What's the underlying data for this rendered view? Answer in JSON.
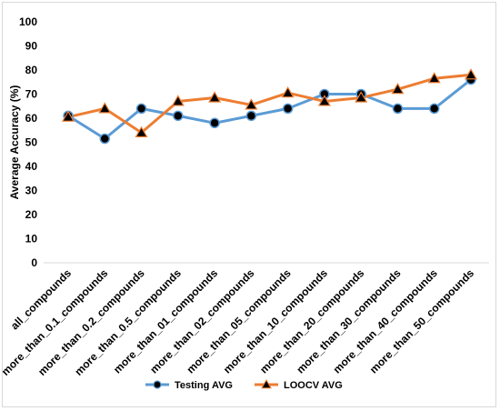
{
  "chart_data": {
    "type": "line",
    "ylabel": "Average Accuracy (%)",
    "xlabel": "",
    "ylim": [
      0,
      100
    ],
    "yticks": [
      0,
      10,
      20,
      30,
      40,
      50,
      60,
      70,
      80,
      90,
      100
    ],
    "grid": false,
    "legend_position": "bottom",
    "categories": [
      "all_compounds",
      "more_than_0.1_compounds",
      "more_than_0.2_compounds",
      "more_than_0.5_compounds",
      "more_than_01_compounds",
      "more_than_02_compounds",
      "more_than_05_compounds",
      "more_than_10_compounds",
      "more_than_20_compounds",
      "more_than_30_compounds",
      "more_than_40_compounds",
      "more_than_50_compounds"
    ],
    "series": [
      {
        "name": "Testing AVG",
        "color": "#5b9bd5",
        "marker": "circle",
        "values": [
          61,
          51.5,
          64,
          61,
          58,
          61,
          64,
          70,
          70,
          64,
          64,
          76
        ]
      },
      {
        "name": "LOOCV AVG",
        "color": "#ed7d31",
        "marker": "triangle",
        "values": [
          60.5,
          64,
          54,
          67,
          68.5,
          65.5,
          70.5,
          67,
          68.5,
          72,
          76.5,
          78
        ]
      }
    ]
  }
}
